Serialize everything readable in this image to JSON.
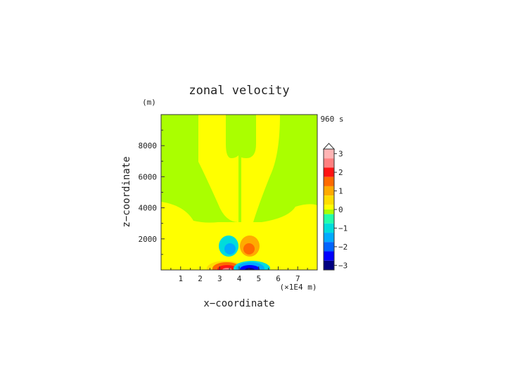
{
  "chart_data": {
    "type": "heatmap",
    "title": "zonal velocity",
    "xlabel": "x−coordinate",
    "ylabel": "z−coordinate",
    "x_unit": "(×1E4 m)",
    "y_unit": "(m)",
    "time_label": "960 s",
    "xlim": [
      0,
      8
    ],
    "ylim": [
      0,
      10000
    ],
    "x_ticks": [
      "1",
      "2",
      "3",
      "4",
      "5",
      "6",
      "7"
    ],
    "y_ticks": [
      "2000",
      "4000",
      "6000",
      "8000"
    ],
    "colorbar": {
      "ticks": [
        "3",
        "2",
        "1",
        "0",
        "−1",
        "−2",
        "−3"
      ],
      "levels": [
        {
          "range": [
            2.75,
            3.25
          ],
          "color": "#ffb4b4"
        },
        {
          "range": [
            2.25,
            2.75
          ],
          "color": "#ff8080"
        },
        {
          "range": [
            1.75,
            2.25
          ],
          "color": "#ff1414"
        },
        {
          "range": [
            1.25,
            1.75
          ],
          "color": "#ff6a00"
        },
        {
          "range": [
            0.75,
            1.25
          ],
          "color": "#ffaa00"
        },
        {
          "range": [
            0.25,
            0.75
          ],
          "color": "#ffdd00"
        },
        {
          "range": [
            0,
            0.25
          ],
          "color": "#ffff00"
        },
        {
          "range": [
            -0.25,
            0
          ],
          "color": "#aaff00"
        },
        {
          "range": [
            -0.75,
            -0.25
          ],
          "color": "#22ffaa"
        },
        {
          "range": [
            -1.25,
            -0.75
          ],
          "color": "#00dcdc"
        },
        {
          "range": [
            -1.75,
            -1.25
          ],
          "color": "#00aaff"
        },
        {
          "range": [
            -2.25,
            -1.75
          ],
          "color": "#0064ff"
        },
        {
          "range": [
            -2.75,
            -2.25
          ],
          "color": "#0000ff"
        },
        {
          "range": [
            -3.25,
            -2.75
          ],
          "color": "#000080"
        }
      ]
    },
    "field_description_values": {
      "background_levels": [
        0,
        -0.25
      ],
      "positive_core": {
        "x": 3.5,
        "z": 0,
        "peak": 3.0
      },
      "negative_core": {
        "x": 4.5,
        "z": 0,
        "peak": -3.0
      },
      "upper_negative_cell": {
        "x": 3.5,
        "z": 1300,
        "peak": -1.5
      },
      "upper_positive_cell": {
        "x": 4.5,
        "z": 1300,
        "peak": 1.5
      }
    }
  }
}
